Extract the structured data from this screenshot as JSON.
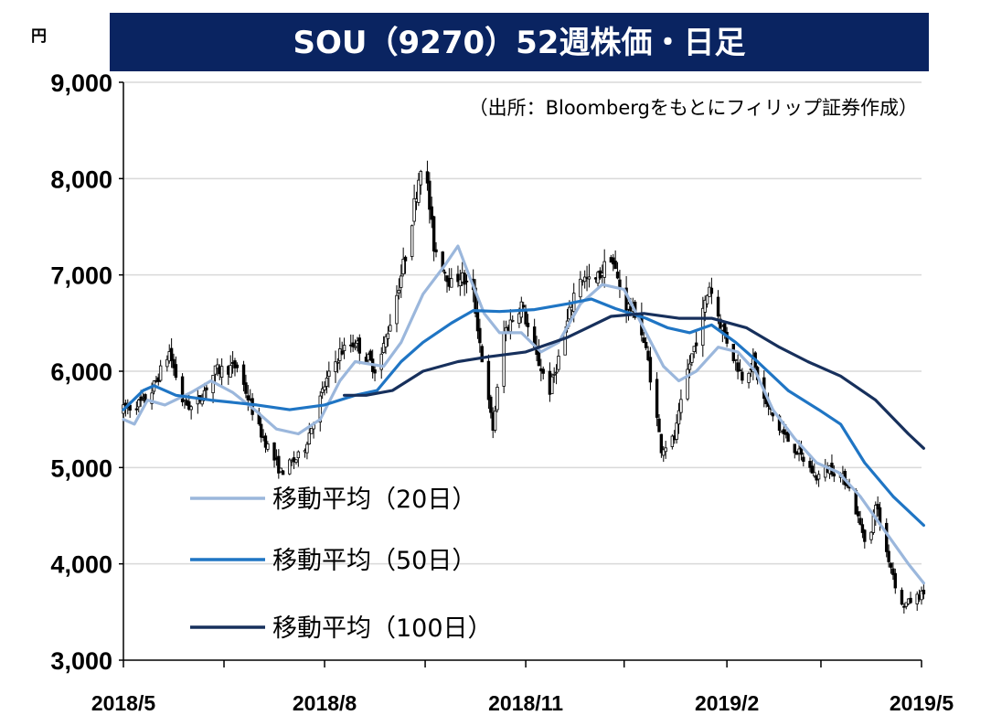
{
  "title": "SOU（9270）52週株価・日足",
  "source_note": "（出所：Bloombergをもとにフィリップ証券作成）",
  "unit_label": "円",
  "colors": {
    "title_bg": "#0a2461",
    "candle": "#000000",
    "ma20": "#9bb7dc",
    "ma50": "#1f75c4",
    "ma100": "#17305c",
    "grid": "#d9d9d9"
  },
  "chart_data": {
    "type": "line",
    "title": "SOU（9270）52週株価・日足",
    "ylabel": "円",
    "ylim": [
      3000,
      9000
    ],
    "yticks": [
      "3,000",
      "4,000",
      "5,000",
      "6,000",
      "7,000",
      "8,000",
      "9,000"
    ],
    "ytick_values": [
      3000,
      4000,
      5000,
      6000,
      7000,
      8000,
      9000
    ],
    "xlim": [
      "2018-05-01",
      "2019-05-01"
    ],
    "xtick_labels": [
      "2018/5",
      "2018/8",
      "2018/11",
      "2019/2",
      "2019/5"
    ],
    "xtick_label_dates": [
      "2018-05-01",
      "2018-08-01",
      "2018-11-01",
      "2019-02-01",
      "2019-05-01"
    ],
    "xtick_minor_dates": [
      "2018-06-16",
      "2018-09-16",
      "2018-12-16",
      "2019-03-16"
    ],
    "grid": true,
    "legend": "bottom-left",
    "price_path": [
      [
        "2018-05-01",
        5600
      ],
      [
        "2018-05-12",
        5700
      ],
      [
        "2018-05-22",
        6200
      ],
      [
        "2018-05-28",
        5700
      ],
      [
        "2018-06-02",
        5600
      ],
      [
        "2018-06-12",
        6000
      ],
      [
        "2018-06-22",
        6050
      ],
      [
        "2018-07-02",
        5400
      ],
      [
        "2018-07-12",
        4950
      ],
      [
        "2018-07-22",
        5150
      ],
      [
        "2018-08-01",
        5850
      ],
      [
        "2018-08-08",
        6200
      ],
      [
        "2018-08-15",
        6300
      ],
      [
        "2018-08-25",
        6000
      ],
      [
        "2018-09-01",
        6600
      ],
      [
        "2018-09-08",
        7300
      ],
      [
        "2018-09-15",
        8300
      ],
      [
        "2018-09-20",
        7300
      ],
      [
        "2018-09-28",
        6900
      ],
      [
        "2018-10-02",
        7000
      ],
      [
        "2018-10-08",
        6800
      ],
      [
        "2018-10-14",
        5800
      ],
      [
        "2018-10-17",
        5400
      ],
      [
        "2018-10-22",
        6400
      ],
      [
        "2018-10-30",
        6700
      ],
      [
        "2018-11-05",
        6200
      ],
      [
        "2018-11-12",
        5800
      ],
      [
        "2018-11-18",
        6300
      ],
      [
        "2018-11-25",
        7000
      ],
      [
        "2018-12-02",
        6900
      ],
      [
        "2018-12-10",
        7200
      ],
      [
        "2018-12-16",
        6700
      ],
      [
        "2018-12-22",
        6600
      ],
      [
        "2018-12-27",
        6100
      ],
      [
        "2019-01-02",
        5200
      ],
      [
        "2019-01-08",
        5300
      ],
      [
        "2019-01-14",
        6000
      ],
      [
        "2019-01-20",
        6500
      ],
      [
        "2019-01-24",
        6900
      ],
      [
        "2019-01-29",
        6500
      ],
      [
        "2019-02-03",
        6200
      ],
      [
        "2019-02-08",
        5950
      ],
      [
        "2019-02-13",
        6100
      ],
      [
        "2019-02-18",
        5700
      ],
      [
        "2019-02-25",
        5400
      ],
      [
        "2019-03-04",
        5200
      ],
      [
        "2019-03-14",
        4900
      ],
      [
        "2019-03-20",
        5000
      ],
      [
        "2019-03-28",
        4850
      ],
      [
        "2019-04-03",
        4400
      ],
      [
        "2019-04-07",
        4150
      ],
      [
        "2019-04-10",
        4650
      ],
      [
        "2019-04-14",
        4200
      ],
      [
        "2019-04-18",
        3900
      ],
      [
        "2019-04-21",
        3550
      ],
      [
        "2019-04-25",
        3600
      ],
      [
        "2019-05-02",
        3700
      ]
    ],
    "series": [
      {
        "name": "移動平均（20日）",
        "color": "#9bb7dc",
        "points": [
          [
            "2018-05-01",
            5500
          ],
          [
            "2018-05-06",
            5450
          ],
          [
            "2018-05-12",
            5700
          ],
          [
            "2018-05-20",
            5650
          ],
          [
            "2018-06-01",
            5780
          ],
          [
            "2018-06-10",
            5900
          ],
          [
            "2018-06-20",
            5780
          ],
          [
            "2018-06-30",
            5600
          ],
          [
            "2018-07-10",
            5400
          ],
          [
            "2018-07-20",
            5350
          ],
          [
            "2018-07-30",
            5500
          ],
          [
            "2018-08-08",
            5900
          ],
          [
            "2018-08-15",
            6100
          ],
          [
            "2018-08-28",
            6050
          ],
          [
            "2018-09-05",
            6300
          ],
          [
            "2018-09-15",
            6800
          ],
          [
            "2018-09-25",
            7100
          ],
          [
            "2018-10-01",
            7300
          ],
          [
            "2018-10-06",
            7000
          ],
          [
            "2018-10-13",
            6600
          ],
          [
            "2018-10-20",
            6400
          ],
          [
            "2018-10-30",
            6400
          ],
          [
            "2018-11-08",
            6200
          ],
          [
            "2018-11-16",
            6300
          ],
          [
            "2018-11-26",
            6700
          ],
          [
            "2018-12-06",
            6900
          ],
          [
            "2018-12-16",
            6850
          ],
          [
            "2018-12-26",
            6400
          ],
          [
            "2019-01-03",
            6050
          ],
          [
            "2019-01-10",
            5900
          ],
          [
            "2019-01-18",
            6000
          ],
          [
            "2019-01-28",
            6250
          ],
          [
            "2019-02-06",
            6200
          ],
          [
            "2019-02-14",
            6000
          ],
          [
            "2019-02-22",
            5600
          ],
          [
            "2019-03-04",
            5300
          ],
          [
            "2019-03-14",
            5050
          ],
          [
            "2019-03-24",
            4950
          ],
          [
            "2019-04-03",
            4700
          ],
          [
            "2019-04-14",
            4350
          ],
          [
            "2019-04-25",
            4000
          ],
          [
            "2019-05-02",
            3800
          ]
        ]
      },
      {
        "name": "移動平均（50日）",
        "color": "#1f75c4",
        "points": [
          [
            "2018-05-01",
            5600
          ],
          [
            "2018-05-10",
            5800
          ],
          [
            "2018-05-15",
            5850
          ],
          [
            "2018-05-25",
            5750
          ],
          [
            "2018-06-10",
            5700
          ],
          [
            "2018-07-01",
            5650
          ],
          [
            "2018-07-16",
            5600
          ],
          [
            "2018-08-01",
            5650
          ],
          [
            "2018-08-15",
            5750
          ],
          [
            "2018-08-25",
            5800
          ],
          [
            "2018-09-05",
            6100
          ],
          [
            "2018-09-15",
            6300
          ],
          [
            "2018-09-28",
            6500
          ],
          [
            "2018-10-08",
            6630
          ],
          [
            "2018-10-20",
            6620
          ],
          [
            "2018-11-05",
            6640
          ],
          [
            "2018-11-20",
            6700
          ],
          [
            "2018-12-01",
            6750
          ],
          [
            "2018-12-12",
            6650
          ],
          [
            "2018-12-26",
            6550
          ],
          [
            "2019-01-05",
            6450
          ],
          [
            "2019-01-15",
            6400
          ],
          [
            "2019-01-25",
            6480
          ],
          [
            "2019-02-05",
            6300
          ],
          [
            "2019-02-15",
            6100
          ],
          [
            "2019-03-01",
            5800
          ],
          [
            "2019-03-15",
            5600
          ],
          [
            "2019-03-25",
            5450
          ],
          [
            "2019-04-05",
            5050
          ],
          [
            "2019-04-18",
            4700
          ],
          [
            "2019-05-02",
            4400
          ]
        ]
      },
      {
        "name": "移動平均（100日）",
        "color": "#17305c",
        "points": [
          [
            "2018-08-10",
            5750
          ],
          [
            "2018-08-20",
            5750
          ],
          [
            "2018-09-01",
            5800
          ],
          [
            "2018-09-15",
            6000
          ],
          [
            "2018-10-01",
            6100
          ],
          [
            "2018-10-15",
            6150
          ],
          [
            "2018-11-01",
            6200
          ],
          [
            "2018-11-20",
            6350
          ],
          [
            "2018-12-10",
            6570
          ],
          [
            "2018-12-25",
            6600
          ],
          [
            "2019-01-10",
            6550
          ],
          [
            "2019-01-25",
            6550
          ],
          [
            "2019-02-10",
            6450
          ],
          [
            "2019-02-25",
            6250
          ],
          [
            "2019-03-10",
            6100
          ],
          [
            "2019-03-25",
            5950
          ],
          [
            "2019-04-10",
            5700
          ],
          [
            "2019-04-25",
            5350
          ],
          [
            "2019-05-02",
            5200
          ]
        ]
      }
    ]
  }
}
